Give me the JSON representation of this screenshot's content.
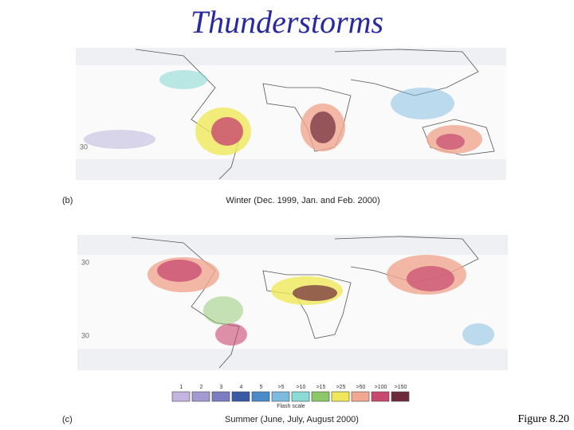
{
  "title": "Thunderstorms",
  "panels": [
    {
      "label": "(b)",
      "caption": "Winter (Dec. 1999, Jan. and Feb. 2000)",
      "latitude_labels": [
        "30"
      ]
    },
    {
      "label": "(c)",
      "caption": "Summer (June, July, August 2000)",
      "latitude_labels": [
        "30",
        "30"
      ]
    }
  ],
  "legend": {
    "title": "Flash scale",
    "items": [
      {
        "label": "1",
        "color": "#c4b4e0"
      },
      {
        "label": "2",
        "color": "#a49ad2"
      },
      {
        "label": "3",
        "color": "#7c7cc2"
      },
      {
        "label": "4",
        "color": "#3a5aa8"
      },
      {
        "label": "5",
        "color": "#4a8ac8"
      },
      {
        "label": ">5",
        "color": "#7cbae0"
      },
      {
        "label": ">10",
        "color": "#8cdad6"
      },
      {
        "label": ">15",
        "color": "#8cc86a"
      },
      {
        "label": ">25",
        "color": "#f0e85a"
      },
      {
        "label": ">50",
        "color": "#f0a890"
      },
      {
        "label": ">100",
        "color": "#c84870"
      },
      {
        "label": ">150",
        "color": "#6e2a3a"
      }
    ]
  },
  "figure_label": "Figure 8.20"
}
